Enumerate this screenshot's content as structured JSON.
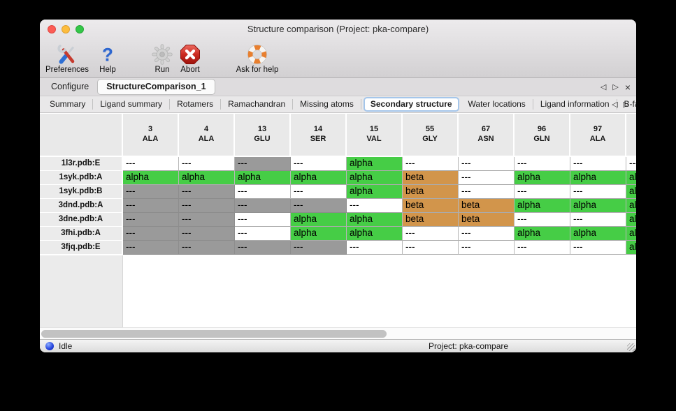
{
  "window": {
    "title": "Structure comparison (Project: pka-compare)",
    "traffic_lights": [
      {
        "id": "close",
        "cls": "close"
      },
      {
        "id": "minimize",
        "cls": "min"
      },
      {
        "id": "zoom",
        "cls": "zoom"
      }
    ]
  },
  "toolbar": {
    "items": [
      {
        "id": "preferences",
        "label": "Preferences",
        "icon": "tools-icon"
      },
      {
        "id": "help",
        "label": "Help",
        "icon": "question-mark-icon"
      },
      {
        "id": "run",
        "label": "Run",
        "icon": "gear-icon"
      },
      {
        "id": "abort",
        "label": "Abort",
        "icon": "stop-x-icon"
      },
      {
        "id": "ask-for-help",
        "label": "Ask for help",
        "icon": "lifebuoy-icon"
      }
    ]
  },
  "document_tabs": {
    "tabs": [
      {
        "label": "Configure",
        "active": false
      },
      {
        "label": "StructureComparison_1",
        "active": true
      }
    ],
    "controls": [
      {
        "name": "tab-scroll-left-icon",
        "glyph": "◁",
        "cls": "g"
      },
      {
        "name": "tab-scroll-right-icon",
        "glyph": "▷",
        "cls": "g"
      },
      {
        "name": "tab-close-icon",
        "glyph": "×",
        "cls": "gx"
      }
    ]
  },
  "view_tabs": {
    "tabs": [
      {
        "label": "Summary",
        "active": false
      },
      {
        "label": "Ligand summary",
        "active": false
      },
      {
        "label": "Rotamers",
        "active": false
      },
      {
        "label": "Ramachandran",
        "active": false
      },
      {
        "label": "Missing atoms",
        "active": false
      },
      {
        "label": "Secondary structure",
        "active": true
      },
      {
        "label": "Water locations",
        "active": false
      },
      {
        "label": "Ligand information",
        "active": false
      },
      {
        "label": "B-factors",
        "active": false
      }
    ],
    "controls": [
      {
        "name": "subtab-scroll-left-icon",
        "glyph": "◁",
        "cls": "g"
      },
      {
        "name": "subtab-scroll-right-icon",
        "glyph": "▷",
        "cls": "g"
      }
    ]
  },
  "colors": {
    "alpha": "#46cd46",
    "beta": "#d2954b",
    "unknown": "#9a9a9a",
    "none": "#ffffff"
  },
  "table": {
    "columns": [
      {
        "number": "3",
        "residue": "ALA"
      },
      {
        "number": "4",
        "residue": "ALA"
      },
      {
        "number": "13",
        "residue": "GLU"
      },
      {
        "number": "14",
        "residue": "SER"
      },
      {
        "number": "15",
        "residue": "VAL"
      },
      {
        "number": "55",
        "residue": "GLY"
      },
      {
        "number": "67",
        "residue": "ASN"
      },
      {
        "number": "96",
        "residue": "GLN"
      },
      {
        "number": "97",
        "residue": "ALA"
      },
      {
        "number": "",
        "residue": ""
      }
    ],
    "rows": [
      {
        "label": "1l3r.pdb:E",
        "cells": [
          {
            "text": "---",
            "type": "none"
          },
          {
            "text": "---",
            "type": "none"
          },
          {
            "text": "---",
            "type": "unknown"
          },
          {
            "text": "---",
            "type": "none"
          },
          {
            "text": "alpha",
            "type": "alpha"
          },
          {
            "text": "---",
            "type": "none"
          },
          {
            "text": "---",
            "type": "none"
          },
          {
            "text": "---",
            "type": "none"
          },
          {
            "text": "---",
            "type": "none"
          },
          {
            "text": "---",
            "type": "none"
          }
        ]
      },
      {
        "label": "1syk.pdb:A",
        "cells": [
          {
            "text": "alpha",
            "type": "alpha"
          },
          {
            "text": "alpha",
            "type": "alpha"
          },
          {
            "text": "alpha",
            "type": "alpha"
          },
          {
            "text": "alpha",
            "type": "alpha"
          },
          {
            "text": "alpha",
            "type": "alpha"
          },
          {
            "text": "beta",
            "type": "beta"
          },
          {
            "text": "---",
            "type": "none"
          },
          {
            "text": "alpha",
            "type": "alpha"
          },
          {
            "text": "alpha",
            "type": "alpha"
          },
          {
            "text": "alpha",
            "type": "alpha"
          }
        ]
      },
      {
        "label": "1syk.pdb:B",
        "cells": [
          {
            "text": "---",
            "type": "unknown"
          },
          {
            "text": "---",
            "type": "unknown"
          },
          {
            "text": "---",
            "type": "none"
          },
          {
            "text": "---",
            "type": "none"
          },
          {
            "text": "alpha",
            "type": "alpha"
          },
          {
            "text": "beta",
            "type": "beta"
          },
          {
            "text": "---",
            "type": "none"
          },
          {
            "text": "---",
            "type": "none"
          },
          {
            "text": "---",
            "type": "none"
          },
          {
            "text": "alpha",
            "type": "alpha"
          }
        ]
      },
      {
        "label": "3dnd.pdb:A",
        "cells": [
          {
            "text": "---",
            "type": "unknown"
          },
          {
            "text": "---",
            "type": "unknown"
          },
          {
            "text": "---",
            "type": "unknown"
          },
          {
            "text": "---",
            "type": "unknown"
          },
          {
            "text": "---",
            "type": "none"
          },
          {
            "text": "beta",
            "type": "beta"
          },
          {
            "text": "beta",
            "type": "beta"
          },
          {
            "text": "alpha",
            "type": "alpha"
          },
          {
            "text": "alpha",
            "type": "alpha"
          },
          {
            "text": "alpha",
            "type": "alpha"
          }
        ]
      },
      {
        "label": "3dne.pdb:A",
        "cells": [
          {
            "text": "---",
            "type": "unknown"
          },
          {
            "text": "---",
            "type": "unknown"
          },
          {
            "text": "---",
            "type": "none"
          },
          {
            "text": "alpha",
            "type": "alpha"
          },
          {
            "text": "alpha",
            "type": "alpha"
          },
          {
            "text": "beta",
            "type": "beta"
          },
          {
            "text": "beta",
            "type": "beta"
          },
          {
            "text": "---",
            "type": "none"
          },
          {
            "text": "---",
            "type": "none"
          },
          {
            "text": "alpha",
            "type": "alpha"
          }
        ]
      },
      {
        "label": "3fhi.pdb:A",
        "cells": [
          {
            "text": "---",
            "type": "unknown"
          },
          {
            "text": "---",
            "type": "unknown"
          },
          {
            "text": "---",
            "type": "none"
          },
          {
            "text": "alpha",
            "type": "alpha"
          },
          {
            "text": "alpha",
            "type": "alpha"
          },
          {
            "text": "---",
            "type": "none"
          },
          {
            "text": "---",
            "type": "none"
          },
          {
            "text": "alpha",
            "type": "alpha"
          },
          {
            "text": "alpha",
            "type": "alpha"
          },
          {
            "text": "alpha",
            "type": "alpha"
          }
        ]
      },
      {
        "label": "3fjq.pdb:E",
        "cells": [
          {
            "text": "---",
            "type": "unknown"
          },
          {
            "text": "---",
            "type": "unknown"
          },
          {
            "text": "---",
            "type": "unknown"
          },
          {
            "text": "---",
            "type": "unknown"
          },
          {
            "text": "---",
            "type": "none"
          },
          {
            "text": "---",
            "type": "none"
          },
          {
            "text": "---",
            "type": "none"
          },
          {
            "text": "---",
            "type": "none"
          },
          {
            "text": "---",
            "type": "none"
          },
          {
            "text": "alpha",
            "type": "alpha"
          }
        ]
      }
    ]
  },
  "status_bar": {
    "status": "Idle",
    "project": "Project: pka-compare"
  }
}
